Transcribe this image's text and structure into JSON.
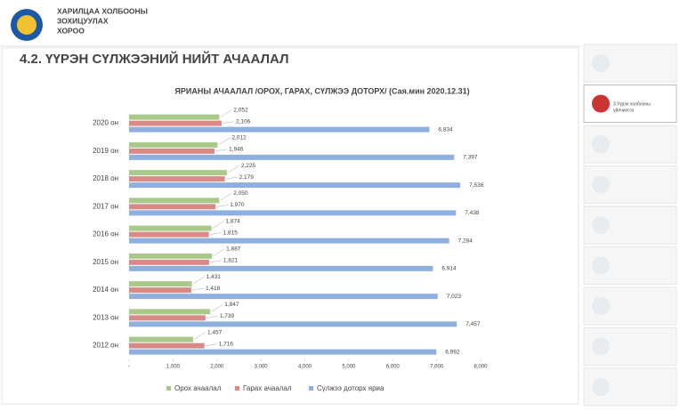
{
  "header": {
    "org": [
      "ХАРИЛЦАА ХОЛБООНЫ",
      "ЗОХИЦУУЛАХ",
      "ХОРОО"
    ],
    "title": "4.2. ҮҮРЭН СҮЛЖЭЭНИЙ НИЙТ АЧААЛАЛ"
  },
  "sidebar": {
    "active": [
      "3.Үүрэн холбооны",
      "үйлчилгээ"
    ]
  },
  "chart_data": {
    "type": "hbar",
    "title": "ЯРИАНЫ АЧААЛАЛ /ОРОХ, ГАРАХ, СҮЛЖЭЭ ДОТОРХ/  (Сая.мин 2020.12.31)",
    "categories": [
      "2020 он",
      "2019 он",
      "2018 он",
      "2017 он",
      "2016 он",
      "2015 он",
      "2014 он",
      "2013 он",
      "2012 он"
    ],
    "series": [
      {
        "name": "Орох ачаалал",
        "color": "#a9c98a",
        "values": [
          2052,
          2012,
          2225,
          2050,
          1874,
          1887,
          1431,
          1847,
          1457
        ],
        "value_labels": [
          "2,052",
          "2,012",
          "2,225",
          "2,050",
          "1,874",
          "1,887",
          "1,431",
          "1,847",
          "1,457"
        ]
      },
      {
        "name": "Гарах ачаалал",
        "color": "#d98a86",
        "values": [
          2106,
          1946,
          2179,
          1970,
          1815,
          1821,
          1418,
          1739,
          1716
        ],
        "value_labels": [
          "2,106",
          "1,946",
          "2,179",
          "1,970",
          "1,815",
          "1,821",
          "1,418",
          "1,739",
          "1,716"
        ]
      },
      {
        "name": "Сүлжээ доторх яриа",
        "color": "#8fb0df",
        "values": [
          6834,
          7397,
          7536,
          7438,
          7284,
          6914,
          7023,
          7457,
          6992
        ],
        "value_labels": [
          "6,834",
          "7,397",
          "7,536",
          "7,438",
          "7,284",
          "6,914",
          "7,023",
          "7,457",
          "6,992"
        ]
      }
    ],
    "xlim": [
      0,
      8000
    ],
    "xticks": [
      {
        "value": 0,
        "label": "-"
      },
      {
        "value": 1000,
        "label": "1,000"
      },
      {
        "value": 2000,
        "label": "2,000"
      },
      {
        "value": 3000,
        "label": "3,000"
      },
      {
        "value": 4000,
        "label": "4,000"
      },
      {
        "value": 5000,
        "label": "5,000"
      },
      {
        "value": 6000,
        "label": "6,000"
      },
      {
        "value": 7000,
        "label": "7,000"
      },
      {
        "value": 8000,
        "label": "8,000"
      }
    ],
    "legend": "bottom"
  }
}
